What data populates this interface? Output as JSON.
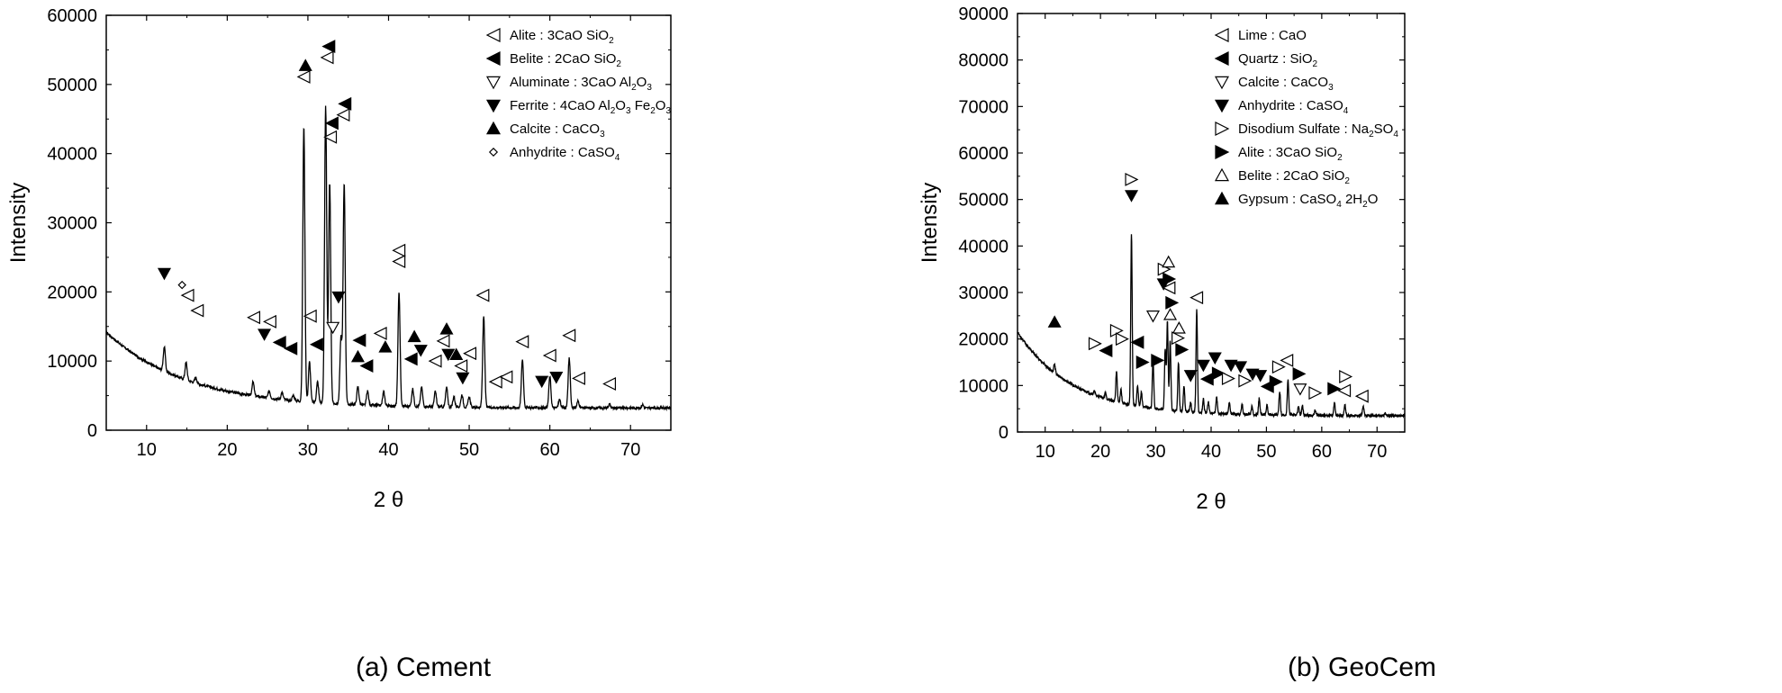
{
  "colors": {
    "line": "#000000",
    "background": "#ffffff"
  },
  "chart_data": [
    {
      "type": "line",
      "caption": "(a)  Cement",
      "xlabel": "2 θ",
      "ylabel": "Intensity",
      "xlim": [
        5,
        75
      ],
      "ylim": [
        0,
        60000
      ],
      "xticks": [
        10,
        20,
        30,
        40,
        50,
        60,
        70
      ],
      "yticks": [
        0,
        10000,
        20000,
        30000,
        40000,
        50000,
        60000
      ],
      "ytick_labels": [
        "0",
        "10000",
        "20000",
        "30000",
        "40000",
        "50000",
        "60000"
      ],
      "xtick_labels": [
        "10",
        "20",
        "30",
        "40",
        "50",
        "60",
        "70"
      ],
      "legend": [
        {
          "symbol": "tri-left-open",
          "name": "Alite",
          "formula": [
            [
              "3CaO SiO",
              ""
            ],
            [
              "2",
              "sub"
            ]
          ]
        },
        {
          "symbol": "tri-left-fill",
          "name": "Belite",
          "formula": [
            [
              "2CaO SiO",
              ""
            ],
            [
              "2",
              "sub"
            ]
          ]
        },
        {
          "symbol": "tri-down-open",
          "name": "Aluminate",
          "formula": [
            [
              "3CaO Al",
              ""
            ],
            [
              "2",
              "sub"
            ],
            [
              "O",
              ""
            ],
            [
              "3",
              "sub"
            ]
          ]
        },
        {
          "symbol": "tri-down-fill",
          "name": "Ferrite",
          "formula": [
            [
              "4CaO Al",
              ""
            ],
            [
              "2",
              "sub"
            ],
            [
              "O",
              ""
            ],
            [
              "3",
              "sub"
            ],
            [
              " Fe",
              ""
            ],
            [
              "2",
              "sub"
            ],
            [
              "O",
              ""
            ],
            [
              "3",
              "sub"
            ]
          ]
        },
        {
          "symbol": "tri-up-fill",
          "name": "Calcite",
          "formula": [
            [
              "CaCO",
              ""
            ],
            [
              "3",
              "sub"
            ]
          ]
        },
        {
          "symbol": "diamond-open",
          "name": "Anhydrite",
          "formula": [
            [
              "CaSO",
              ""
            ],
            [
              "4",
              "sub"
            ]
          ]
        }
      ],
      "background_curve": {
        "a": 11000,
        "b": 15000,
        "k": 0.1,
        "c": 3200
      },
      "peaks": [
        [
          12.2,
          3500
        ],
        [
          14.9,
          2500
        ],
        [
          16.1,
          800
        ],
        [
          23.2,
          2000
        ],
        [
          25.2,
          1000
        ],
        [
          26.8,
          1000
        ],
        [
          28.2,
          800
        ],
        [
          29.5,
          40000
        ],
        [
          30.2,
          5800
        ],
        [
          31.2,
          3000
        ],
        [
          32.2,
          43000
        ],
        [
          32.7,
          32000
        ],
        [
          34.1,
          9500
        ],
        [
          34.5,
          32000
        ],
        [
          36.2,
          2600
        ],
        [
          37.4,
          2000
        ],
        [
          39.4,
          2000
        ],
        [
          41.3,
          16500
        ],
        [
          43.0,
          2500
        ],
        [
          44.1,
          2800
        ],
        [
          45.8,
          2200
        ],
        [
          47.2,
          2800
        ],
        [
          48.1,
          1500
        ],
        [
          49.1,
          1800
        ],
        [
          50.0,
          1500
        ],
        [
          51.8,
          13200
        ],
        [
          56.6,
          7000
        ],
        [
          60.0,
          4500
        ],
        [
          61.2,
          1200
        ],
        [
          62.4,
          7200
        ],
        [
          63.5,
          1000
        ],
        [
          67.4,
          600
        ],
        [
          71.5,
          500
        ]
      ],
      "markers": [
        {
          "x": 12.2,
          "y": 22700,
          "s": "tri-down-fill"
        },
        {
          "x": 14.4,
          "y": 21000,
          "s": "diamond-open"
        },
        {
          "x": 15.1,
          "y": 19500,
          "s": "tri-left-open"
        },
        {
          "x": 16.3,
          "y": 17300,
          "s": "tri-left-open"
        },
        {
          "x": 23.3,
          "y": 16300,
          "s": "tri-left-open"
        },
        {
          "x": 25.3,
          "y": 15700,
          "s": "tri-left-open"
        },
        {
          "x": 24.6,
          "y": 13900,
          "s": "tri-down-fill"
        },
        {
          "x": 26.5,
          "y": 12700,
          "s": "tri-left-fill"
        },
        {
          "x": 27.9,
          "y": 11800,
          "s": "tri-left-fill"
        },
        {
          "x": 29.5,
          "y": 51100,
          "s": "tri-left-open"
        },
        {
          "x": 29.7,
          "y": 52700,
          "s": "tri-up-fill"
        },
        {
          "x": 30.3,
          "y": 16500,
          "s": "tri-left-open"
        },
        {
          "x": 31.1,
          "y": 12400,
          "s": "tri-left-fill"
        },
        {
          "x": 32.4,
          "y": 53900,
          "s": "tri-left-open"
        },
        {
          "x": 32.6,
          "y": 55500,
          "s": "tri-left-fill"
        },
        {
          "x": 32.8,
          "y": 42400,
          "s": "tri-left-open"
        },
        {
          "x": 33.0,
          "y": 44400,
          "s": "tri-left-fill"
        },
        {
          "x": 33.1,
          "y": 14900,
          "s": "tri-down-open"
        },
        {
          "x": 33.8,
          "y": 19300,
          "s": "tri-down-fill"
        },
        {
          "x": 34.4,
          "y": 45600,
          "s": "tri-left-open"
        },
        {
          "x": 34.6,
          "y": 47200,
          "s": "tri-left-fill"
        },
        {
          "x": 36.2,
          "y": 10600,
          "s": "tri-up-fill"
        },
        {
          "x": 36.4,
          "y": 13000,
          "s": "tri-left-fill"
        },
        {
          "x": 37.3,
          "y": 9300,
          "s": "tri-left-fill"
        },
        {
          "x": 39.0,
          "y": 14000,
          "s": "tri-left-open"
        },
        {
          "x": 39.6,
          "y": 12000,
          "s": "tri-up-fill"
        },
        {
          "x": 41.3,
          "y": 24400,
          "s": "tri-left-open"
        },
        {
          "x": 41.3,
          "y": 26000,
          "s": "tri-left-open"
        },
        {
          "x": 42.8,
          "y": 10300,
          "s": "tri-left-fill"
        },
        {
          "x": 43.2,
          "y": 13500,
          "s": "tri-up-fill"
        },
        {
          "x": 44.0,
          "y": 11600,
          "s": "tri-down-fill"
        },
        {
          "x": 45.8,
          "y": 10000,
          "s": "tri-left-open"
        },
        {
          "x": 46.8,
          "y": 12900,
          "s": "tri-left-open"
        },
        {
          "x": 47.2,
          "y": 14600,
          "s": "tri-up-fill"
        },
        {
          "x": 47.4,
          "y": 11000,
          "s": "tri-down-fill"
        },
        {
          "x": 48.4,
          "y": 10900,
          "s": "tri-up-fill"
        },
        {
          "x": 49.0,
          "y": 9300,
          "s": "tri-left-open"
        },
        {
          "x": 49.2,
          "y": 7600,
          "s": "tri-down-fill"
        },
        {
          "x": 50.1,
          "y": 11100,
          "s": "tri-left-open"
        },
        {
          "x": 51.7,
          "y": 19500,
          "s": "tri-left-open"
        },
        {
          "x": 53.3,
          "y": 7000,
          "s": "tri-left-open"
        },
        {
          "x": 54.6,
          "y": 7700,
          "s": "tri-left-open"
        },
        {
          "x": 56.6,
          "y": 12800,
          "s": "tri-left-open"
        },
        {
          "x": 59.0,
          "y": 7100,
          "s": "tri-down-fill"
        },
        {
          "x": 60.0,
          "y": 10800,
          "s": "tri-left-open"
        },
        {
          "x": 60.8,
          "y": 7700,
          "s": "tri-down-fill"
        },
        {
          "x": 62.4,
          "y": 13700,
          "s": "tri-left-open"
        },
        {
          "x": 63.6,
          "y": 7500,
          "s": "tri-left-open"
        },
        {
          "x": 67.4,
          "y": 6700,
          "s": "tri-left-open"
        }
      ]
    },
    {
      "type": "line",
      "caption": "(b)  GeoCem",
      "xlabel": "2 θ",
      "ylabel": "Intensity",
      "xlim": [
        5,
        75
      ],
      "ylim": [
        0,
        90000
      ],
      "xticks": [
        10,
        20,
        30,
        40,
        50,
        60,
        70
      ],
      "yticks": [
        0,
        10000,
        20000,
        30000,
        40000,
        50000,
        60000,
        70000,
        80000,
        90000
      ],
      "ytick_labels": [
        "0",
        "10000",
        "20000",
        "30000",
        "40000",
        "50000",
        "60000",
        "70000",
        "80000",
        "90000"
      ],
      "xtick_labels": [
        "10",
        "20",
        "30",
        "40",
        "50",
        "60",
        "70"
      ],
      "legend": [
        {
          "symbol": "tri-left-open",
          "name": "Lime",
          "formula": [
            [
              "CaO",
              ""
            ]
          ]
        },
        {
          "symbol": "tri-left-fill",
          "name": "Quartz",
          "formula": [
            [
              "SiO",
              ""
            ],
            [
              "2",
              "sub"
            ]
          ]
        },
        {
          "symbol": "tri-down-open",
          "name": "Calcite",
          "formula": [
            [
              "CaCO",
              ""
            ],
            [
              "3",
              "sub"
            ]
          ]
        },
        {
          "symbol": "tri-down-fill",
          "name": "Anhydrite",
          "formula": [
            [
              "CaSO",
              ""
            ],
            [
              "4",
              "sub"
            ]
          ]
        },
        {
          "symbol": "tri-right-open",
          "name": "Disodium Sulfate",
          "formula": [
            [
              "Na",
              ""
            ],
            [
              "2",
              "sub"
            ],
            [
              "SO",
              ""
            ],
            [
              "4",
              "sub"
            ]
          ]
        },
        {
          "symbol": "tri-right-fill",
          "name": "Alite",
          "formula": [
            [
              "3CaO SiO",
              ""
            ],
            [
              "2",
              "sub"
            ]
          ]
        },
        {
          "symbol": "tri-up-open",
          "name": "Belite",
          "formula": [
            [
              "2CaO SiO",
              ""
            ],
            [
              "2",
              "sub"
            ]
          ]
        },
        {
          "symbol": "tri-up-fill",
          "name": "Gypsum",
          "formula": [
            [
              "CaSO",
              ""
            ],
            [
              "4",
              "sub"
            ],
            [
              " 2H",
              ""
            ],
            [
              "2",
              "sub"
            ],
            [
              "O",
              ""
            ]
          ]
        }
      ],
      "background_curve": {
        "a": 18000,
        "b": 22000,
        "k": 0.1,
        "c": 3500
      },
      "peaks": [
        [
          11.7,
          2000
        ],
        [
          18.9,
          800
        ],
        [
          20.9,
          1200
        ],
        [
          22.9,
          6500
        ],
        [
          23.7,
          3000
        ],
        [
          25.6,
          37000
        ],
        [
          26.7,
          4500
        ],
        [
          27.4,
          3200
        ],
        [
          29.5,
          10500
        ],
        [
          31.7,
          13000
        ],
        [
          32.1,
          19000
        ],
        [
          32.6,
          15000
        ],
        [
          34.1,
          10500
        ],
        [
          35.1,
          5500
        ],
        [
          36.3,
          2000
        ],
        [
          37.4,
          22000
        ],
        [
          38.6,
          3000
        ],
        [
          39.5,
          2500
        ],
        [
          41.0,
          3500
        ],
        [
          43.3,
          2500
        ],
        [
          45.6,
          2200
        ],
        [
          47.4,
          1800
        ],
        [
          48.7,
          3500
        ],
        [
          50.1,
          2000
        ],
        [
          52.4,
          5000
        ],
        [
          53.9,
          7500
        ],
        [
          55.8,
          2000
        ],
        [
          56.5,
          2000
        ],
        [
          58.8,
          1200
        ],
        [
          62.3,
          2800
        ],
        [
          64.2,
          2200
        ],
        [
          67.5,
          2000
        ],
        [
          71.5,
          500
        ]
      ],
      "markers": [
        {
          "x": 11.7,
          "y": 23600,
          "s": "tri-up-fill"
        },
        {
          "x": 19.0,
          "y": 19000,
          "s": "tri-right-open"
        },
        {
          "x": 21.0,
          "y": 17500,
          "s": "tri-left-fill"
        },
        {
          "x": 22.9,
          "y": 21800,
          "s": "tri-right-open"
        },
        {
          "x": 23.9,
          "y": 20000,
          "s": "tri-right-open"
        },
        {
          "x": 25.6,
          "y": 54300,
          "s": "tri-right-open"
        },
        {
          "x": 25.6,
          "y": 50900,
          "s": "tri-down-fill"
        },
        {
          "x": 26.7,
          "y": 19300,
          "s": "tri-left-fill"
        },
        {
          "x": 27.6,
          "y": 15000,
          "s": "tri-right-fill"
        },
        {
          "x": 29.5,
          "y": 25000,
          "s": "tri-down-open"
        },
        {
          "x": 30.3,
          "y": 15400,
          "s": "tri-right-fill"
        },
        {
          "x": 31.5,
          "y": 35000,
          "s": "tri-right-open"
        },
        {
          "x": 31.4,
          "y": 31900,
          "s": "tri-down-fill"
        },
        {
          "x": 32.3,
          "y": 36500,
          "s": "tri-up-open"
        },
        {
          "x": 32.4,
          "y": 32900,
          "s": "tri-right-fill"
        },
        {
          "x": 32.4,
          "y": 31000,
          "s": "tri-left-open"
        },
        {
          "x": 32.6,
          "y": 25200,
          "s": "tri-up-open"
        },
        {
          "x": 32.9,
          "y": 27800,
          "s": "tri-right-fill"
        },
        {
          "x": 34.2,
          "y": 22300,
          "s": "tri-up-open"
        },
        {
          "x": 34.0,
          "y": 20200,
          "s": "tri-right-open"
        },
        {
          "x": 34.7,
          "y": 17700,
          "s": "tri-right-fill"
        },
        {
          "x": 36.3,
          "y": 12200,
          "s": "tri-down-fill"
        },
        {
          "x": 37.4,
          "y": 28900,
          "s": "tri-left-open"
        },
        {
          "x": 38.6,
          "y": 14400,
          "s": "tri-down-fill"
        },
        {
          "x": 39.3,
          "y": 11400,
          "s": "tri-left-fill"
        },
        {
          "x": 40.7,
          "y": 16000,
          "s": "tri-down-fill"
        },
        {
          "x": 41.3,
          "y": 12600,
          "s": "tri-right-fill"
        },
        {
          "x": 43.1,
          "y": 11500,
          "s": "tri-right-open"
        },
        {
          "x": 43.6,
          "y": 14400,
          "s": "tri-down-fill"
        },
        {
          "x": 45.3,
          "y": 14100,
          "s": "tri-down-fill"
        },
        {
          "x": 46.1,
          "y": 11000,
          "s": "tri-right-open"
        },
        {
          "x": 47.5,
          "y": 12500,
          "s": "tri-down-fill"
        },
        {
          "x": 48.9,
          "y": 12200,
          "s": "tri-down-fill"
        },
        {
          "x": 50.2,
          "y": 9800,
          "s": "tri-left-fill"
        },
        {
          "x": 51.7,
          "y": 10800,
          "s": "tri-right-fill"
        },
        {
          "x": 52.2,
          "y": 14000,
          "s": "tri-right-open"
        },
        {
          "x": 53.7,
          "y": 15400,
          "s": "tri-left-open"
        },
        {
          "x": 55.9,
          "y": 12500,
          "s": "tri-right-fill"
        },
        {
          "x": 56.1,
          "y": 9300,
          "s": "tri-down-open"
        },
        {
          "x": 58.8,
          "y": 8400,
          "s": "tri-right-open"
        },
        {
          "x": 62.2,
          "y": 9300,
          "s": "tri-right-fill"
        },
        {
          "x": 64.3,
          "y": 11900,
          "s": "tri-right-open"
        },
        {
          "x": 64.1,
          "y": 8900,
          "s": "tri-left-open"
        },
        {
          "x": 67.3,
          "y": 7700,
          "s": "tri-left-open"
        }
      ]
    }
  ]
}
